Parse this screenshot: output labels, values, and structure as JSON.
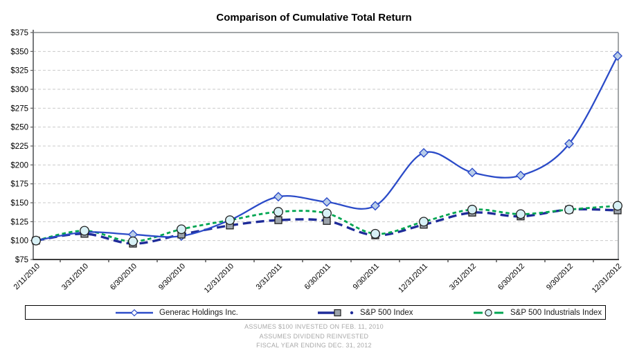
{
  "title": "Comparison of Cumulative Total Return",
  "y_axis": {
    "labels": [
      "$375",
      "$350",
      "$325",
      "$300",
      "$275",
      "$250",
      "$225",
      "$200",
      "$175",
      "$150",
      "$125",
      "$100",
      "$75"
    ],
    "min": 75,
    "max": 375,
    "step": 25,
    "prefix": "$"
  },
  "x_axis": {
    "labels": [
      "2/11/2010",
      "3/31/2010",
      "6/30/2010",
      "9/30/2010",
      "12/31/2010",
      "3/31/2011",
      "6/30/2011",
      "9/30/2011",
      "12/31/2011",
      "3/31/2012",
      "6/30/2012",
      "9/30/2012",
      "12/31/2012"
    ]
  },
  "chart_data": {
    "type": "line",
    "title": "Comparison of Cumulative Total Return",
    "x": [
      "2/11/2010",
      "3/31/2010",
      "6/30/2010",
      "9/30/2010",
      "12/31/2010",
      "3/31/2011",
      "6/30/2011",
      "9/30/2011",
      "12/31/2011",
      "3/31/2012",
      "6/30/2012",
      "9/30/2012",
      "12/31/2012"
    ],
    "ylim": [
      75,
      375
    ],
    "ytick_step": 25,
    "grid": true,
    "legend_position": "bottom",
    "series": [
      {
        "name": "Generac Holdings Inc.",
        "values": [
          100,
          111,
          108,
          106,
          127,
          158,
          151,
          146,
          216,
          190,
          186,
          228,
          344
        ],
        "color": "#2B4BC8",
        "line_style": "solid",
        "line_width": 2.3,
        "marker": "diamond",
        "marker_fill": "#B9CDE9"
      },
      {
        "name": "S&P 500 Index",
        "values": [
          100,
          109,
          96,
          108,
          120,
          127,
          126,
          107,
          121,
          137,
          132,
          141,
          140
        ],
        "color": "#1E2B99",
        "line_style": "dashed",
        "dash": "12 7",
        "line_width": 3.4,
        "marker": "square",
        "marker_fill": "#9CA3AB"
      },
      {
        "name": "S&P 500 Industrials Index",
        "values": [
          100,
          113,
          99,
          115,
          127,
          138,
          136,
          109,
          125,
          141,
          135,
          141,
          146
        ],
        "color": "#00A551",
        "line_style": "dashed",
        "dash": "5.5 4.2",
        "line_width": 2.8,
        "marker": "circle",
        "marker_fill": "#D8F1F6"
      }
    ]
  },
  "legend": {
    "items": [
      {
        "label": "Generac Holdings Inc."
      },
      {
        "label": "S&P 500 Index",
        "bullet": true
      },
      {
        "label": "S&P 500 Industrials Index"
      }
    ]
  },
  "footnotes": [
    "ASSUMES $100 INVESTED ON FEB. 11, 2010",
    "ASSUMES DIVIDEND REINVESTED",
    "FISCAL YEAR ENDING DEC. 31, 2012"
  ],
  "colors": {
    "grid": "#C9C9C9",
    "axis_top_right": "#A3A6A8",
    "axis_left": "#77797B",
    "axis_bottom": "#3C3C3C",
    "tick": "#5a5a5a",
    "label_text": "#1a1a1a",
    "footnote_text": "#a8a8a8"
  }
}
